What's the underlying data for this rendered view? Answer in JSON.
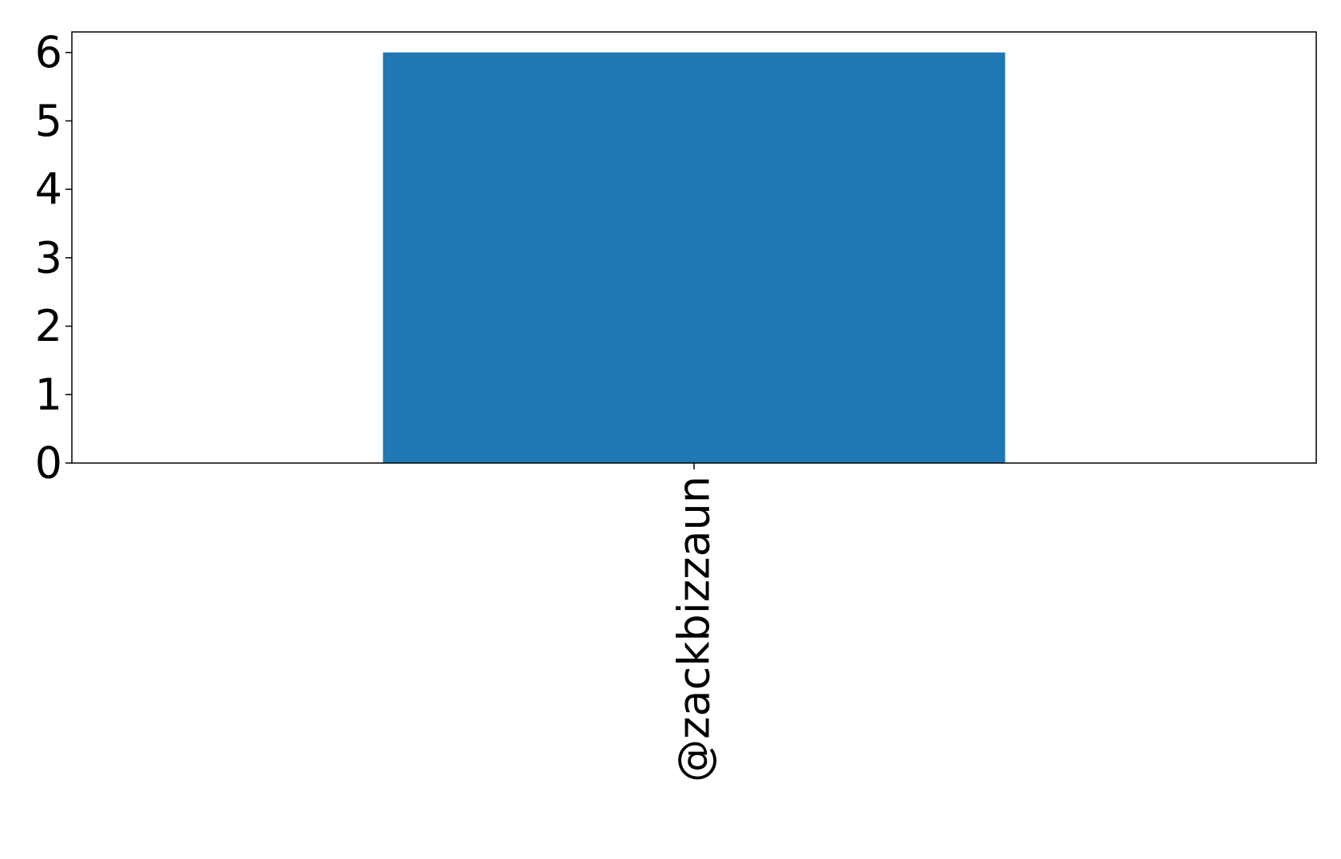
{
  "chart_data": {
    "type": "bar",
    "title": "",
    "xlabel": "",
    "ylabel": "",
    "categories": [
      "@zackbizzaun"
    ],
    "values": [
      6
    ],
    "ylim": [
      0,
      6.3
    ],
    "yticks": [
      "0",
      "1",
      "2",
      "3",
      "4",
      "5",
      "6"
    ],
    "grid": false,
    "bar_color": "#1f77b4"
  }
}
